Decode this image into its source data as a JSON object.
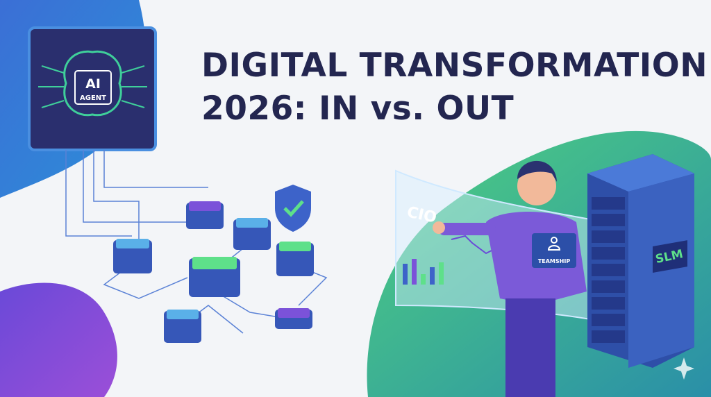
{
  "headline": {
    "line1": "DIGITAL TRANSFORMATION",
    "line2": "2026: IN vs. OUT"
  },
  "chip": {
    "line1": "AI",
    "line2": "AGENT"
  },
  "screen": {
    "label": "CIO"
  },
  "badge": {
    "label": "TEAMSHIP"
  },
  "server": {
    "label": "SLM"
  },
  "colors": {
    "navy": "#232650",
    "blue": "#3d63c9",
    "purple": "#7b52d9",
    "green": "#4ccb7f"
  }
}
